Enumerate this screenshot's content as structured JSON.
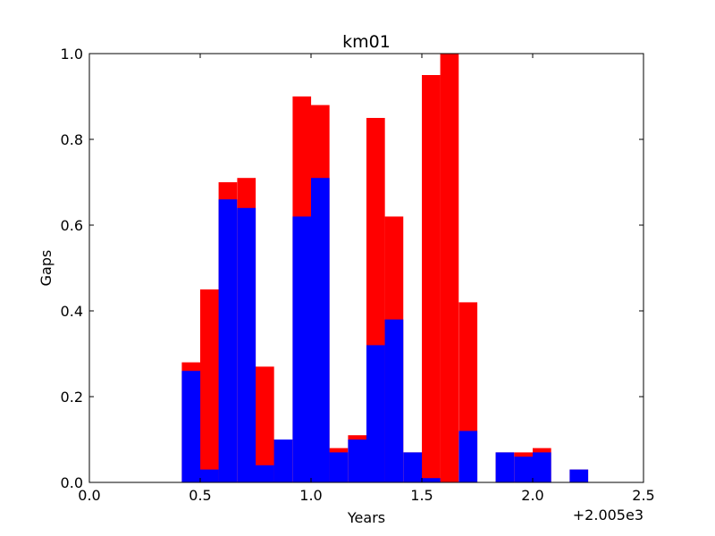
{
  "chart_data": {
    "type": "bar",
    "title": "km01",
    "xlabel": "Years",
    "ylabel": "Gaps",
    "x_offset_label": "+2.005e3",
    "xlim": [
      0.0,
      2.5
    ],
    "ylim": [
      0.0,
      1.0
    ],
    "xticks": [
      "0.0",
      "0.5",
      "1.0",
      "1.5",
      "2.0",
      "2.5"
    ],
    "yticks": [
      "0.0",
      "0.2",
      "0.4",
      "0.6",
      "0.8",
      "1.0"
    ],
    "bin_width": 0.0833,
    "colors": {
      "red": "#ff0000",
      "blue": "#0000ff"
    },
    "series": [
      {
        "color": "red",
        "bins": [
          {
            "x": 0.417,
            "value": 0.28
          },
          {
            "x": 0.5,
            "value": 0.45
          },
          {
            "x": 0.583,
            "value": 0.7
          },
          {
            "x": 0.667,
            "value": 0.71
          },
          {
            "x": 0.75,
            "value": 0.27
          },
          {
            "x": 0.833,
            "value": 0.1
          },
          {
            "x": 0.917,
            "value": 0.9
          },
          {
            "x": 1.0,
            "value": 0.88
          },
          {
            "x": 1.083,
            "value": 0.08
          },
          {
            "x": 1.167,
            "value": 0.11
          },
          {
            "x": 1.25,
            "value": 0.85
          },
          {
            "x": 1.333,
            "value": 0.62
          },
          {
            "x": 1.417,
            "value": 0.07
          },
          {
            "x": 1.5,
            "value": 0.95
          },
          {
            "x": 1.583,
            "value": 1.0
          },
          {
            "x": 1.667,
            "value": 0.42
          },
          {
            "x": 1.833,
            "value": 0.07
          },
          {
            "x": 1.917,
            "value": 0.07
          },
          {
            "x": 2.0,
            "value": 0.08
          },
          {
            "x": 2.167,
            "value": 0.03
          }
        ]
      },
      {
        "color": "blue",
        "bins": [
          {
            "x": 0.417,
            "value": 0.26
          },
          {
            "x": 0.5,
            "value": 0.03
          },
          {
            "x": 0.583,
            "value": 0.66
          },
          {
            "x": 0.667,
            "value": 0.64
          },
          {
            "x": 0.75,
            "value": 0.04
          },
          {
            "x": 0.833,
            "value": 0.1
          },
          {
            "x": 0.917,
            "value": 0.62
          },
          {
            "x": 1.0,
            "value": 0.71
          },
          {
            "x": 1.083,
            "value": 0.07
          },
          {
            "x": 1.167,
            "value": 0.1
          },
          {
            "x": 1.25,
            "value": 0.32
          },
          {
            "x": 1.333,
            "value": 0.38
          },
          {
            "x": 1.417,
            "value": 0.07
          },
          {
            "x": 1.5,
            "value": 0.01
          },
          {
            "x": 1.667,
            "value": 0.12
          },
          {
            "x": 1.833,
            "value": 0.07
          },
          {
            "x": 1.917,
            "value": 0.06
          },
          {
            "x": 2.0,
            "value": 0.07
          },
          {
            "x": 2.167,
            "value": 0.03
          }
        ]
      }
    ]
  }
}
